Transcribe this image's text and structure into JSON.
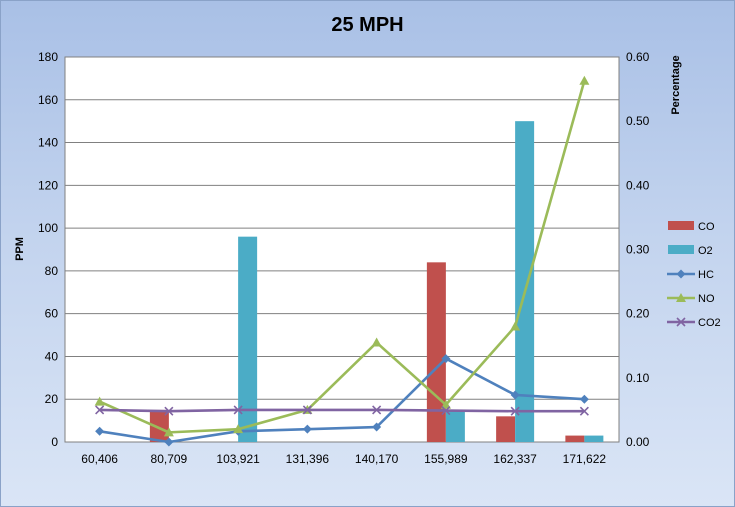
{
  "chart_data": {
    "type": "bar",
    "title": "25 MPH",
    "xlabel": "",
    "ylabel": "PPM",
    "y2label": "Percentage",
    "categories": [
      "60,406",
      "80,709",
      "103,921",
      "131,396",
      "140,170",
      "155,989",
      "162,337",
      "171,622"
    ],
    "ylim": [
      0,
      180
    ],
    "y2lim": [
      0,
      0.6
    ],
    "yticks": [
      "0",
      "20",
      "40",
      "60",
      "80",
      "100",
      "120",
      "140",
      "160",
      "180"
    ],
    "y2ticks": [
      "0.00",
      "0.10",
      "0.20",
      "0.30",
      "0.40",
      "0.50",
      "0.60"
    ],
    "grid": true,
    "legend_position": "right",
    "series": [
      {
        "name": "CO",
        "kind": "bar",
        "axis": "left",
        "color": "#c0504d",
        "values": [
          0,
          15,
          0,
          0,
          0,
          84,
          12,
          3
        ]
      },
      {
        "name": "O2",
        "kind": "bar",
        "axis": "left",
        "color": "#4bacc6",
        "values": [
          0,
          0,
          96,
          0,
          0,
          15,
          150,
          3
        ]
      },
      {
        "name": "HC",
        "kind": "line",
        "axis": "left",
        "color": "#4f81bd",
        "marker": "diamond",
        "values": [
          5,
          0,
          5,
          6,
          7,
          39,
          22,
          20
        ]
      },
      {
        "name": "NO",
        "kind": "line",
        "axis": "right",
        "color": "#9bbb59",
        "marker": "triangle",
        "values": [
          0.063,
          0.015,
          0.02,
          0.05,
          0.155,
          0.058,
          0.18,
          0.563
        ]
      },
      {
        "name": "CO2",
        "kind": "line",
        "axis": "right",
        "color": "#8064a2",
        "marker": "x",
        "values": [
          0.05,
          0.048,
          0.05,
          0.05,
          0.05,
          0.049,
          0.048,
          0.048
        ]
      }
    ]
  }
}
